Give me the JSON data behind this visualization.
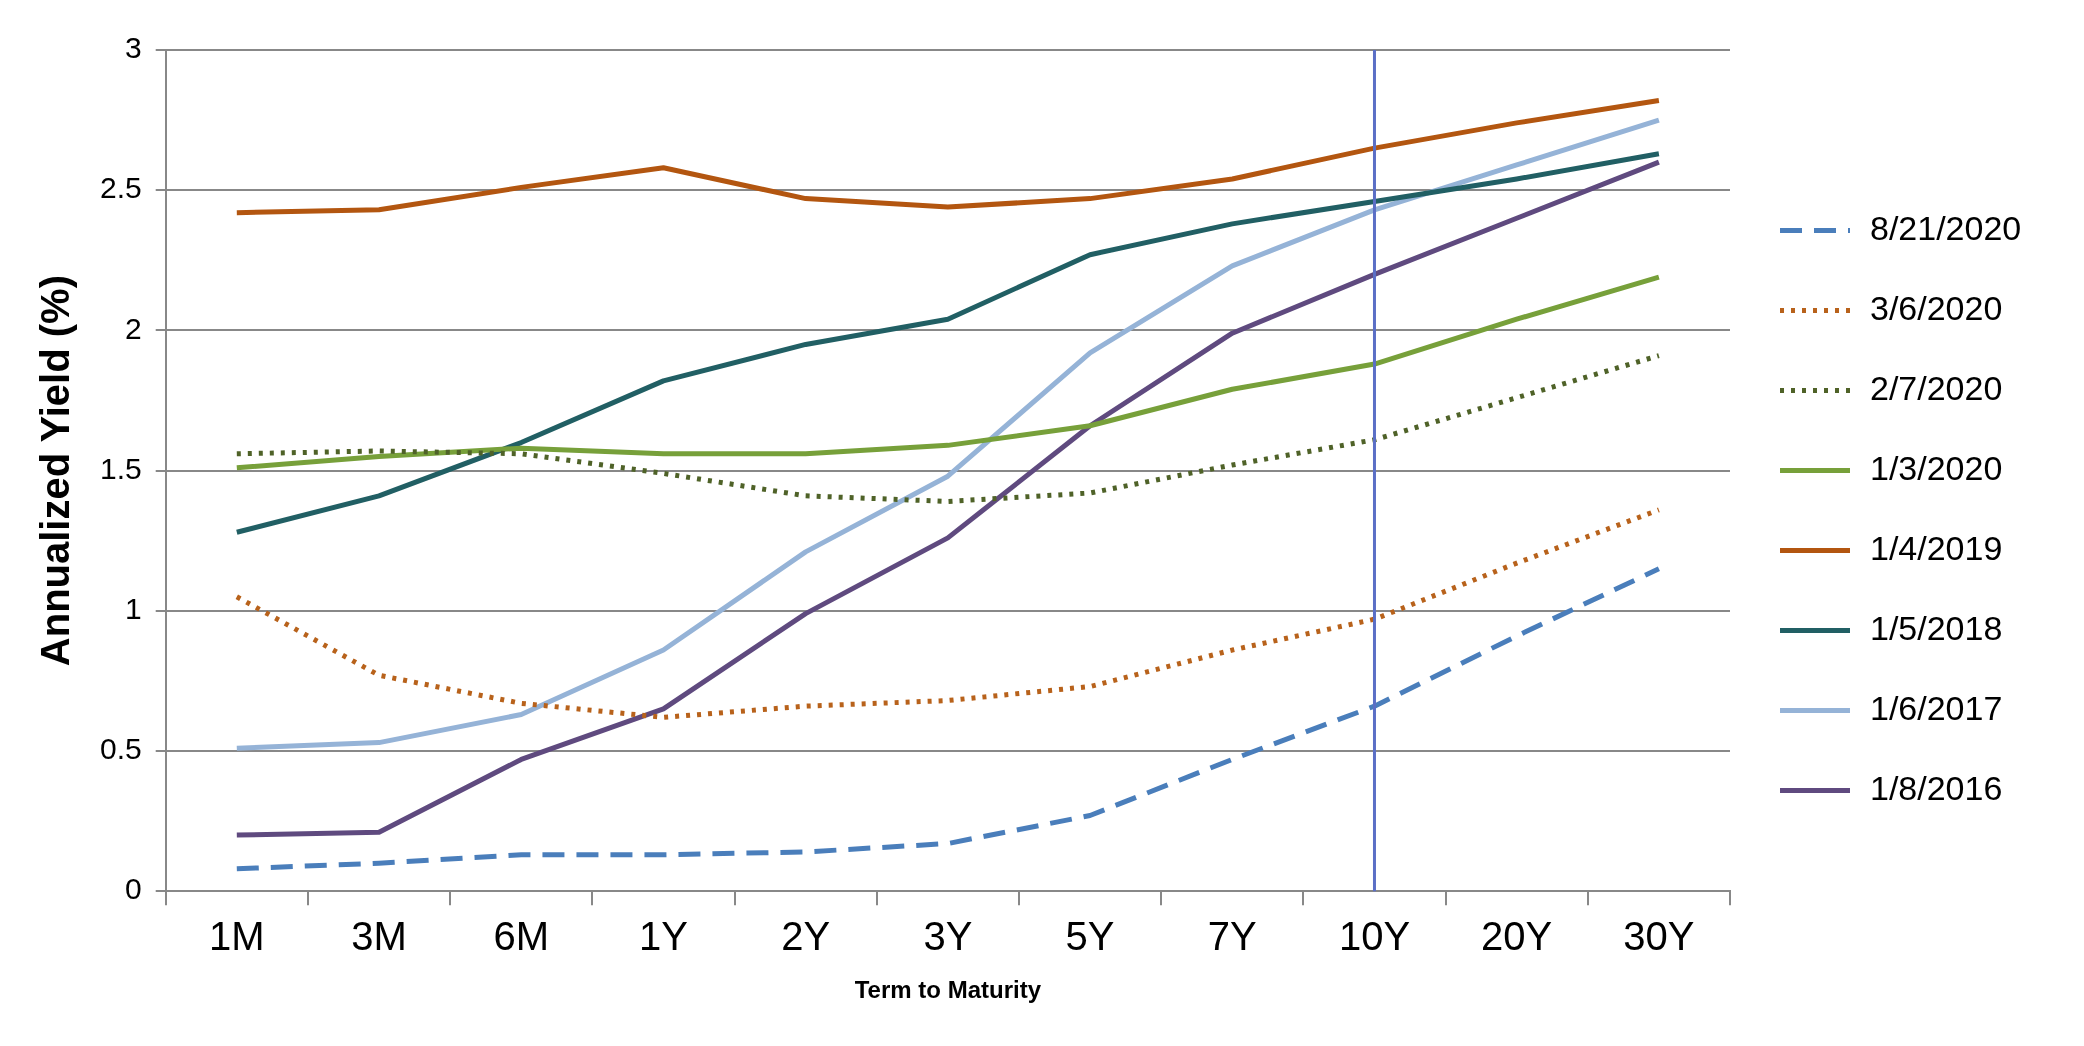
{
  "chart_data": {
    "type": "line",
    "xlabel": "Term to Maturity",
    "ylabel": "Annualized Yield (%)",
    "categories": [
      "1M",
      "3M",
      "6M",
      "1Y",
      "2Y",
      "3Y",
      "5Y",
      "7Y",
      "10Y",
      "20Y",
      "30Y"
    ],
    "ylim": [
      0,
      3
    ],
    "yticks": [
      0,
      0.5,
      1,
      1.5,
      2,
      2.5,
      3
    ],
    "grid": "y",
    "legend": "right",
    "marker": "none",
    "ref_lines": [
      {
        "axis": "x",
        "value": "10Y",
        "color": "#5b6fc6",
        "line_style": "solid"
      }
    ],
    "series": [
      {
        "name": "8/21/2020",
        "color": "#4a7ebb",
        "line_style": "dashed",
        "values": [
          0.08,
          0.1,
          0.13,
          0.13,
          0.14,
          0.17,
          0.27,
          0.47,
          0.66,
          0.91,
          1.15
        ]
      },
      {
        "name": "3/6/2020",
        "color": "#b8621b",
        "line_style": "dotted",
        "values": [
          1.05,
          0.77,
          0.67,
          0.62,
          0.66,
          0.68,
          0.73,
          0.86,
          0.97,
          1.17,
          1.36
        ]
      },
      {
        "name": "2/7/2020",
        "color": "#4f6228",
        "line_style": "dotted",
        "values": [
          1.56,
          1.57,
          1.56,
          1.49,
          1.41,
          1.39,
          1.42,
          1.52,
          1.61,
          1.76,
          1.91
        ]
      },
      {
        "name": "1/3/2020",
        "color": "#77a03a",
        "line_style": "solid",
        "values": [
          1.51,
          1.55,
          1.58,
          1.56,
          1.56,
          1.59,
          1.66,
          1.79,
          1.88,
          2.04,
          2.19
        ]
      },
      {
        "name": "1/4/2019",
        "color": "#b35610",
        "line_style": "solid",
        "values": [
          2.42,
          2.43,
          2.51,
          2.58,
          2.47,
          2.44,
          2.47,
          2.54,
          2.65,
          2.74,
          2.82
        ]
      },
      {
        "name": "1/5/2018",
        "color": "#215f64",
        "line_style": "solid",
        "values": [
          1.28,
          1.41,
          1.6,
          1.82,
          1.95,
          2.04,
          2.27,
          2.38,
          2.46,
          2.54,
          2.63
        ]
      },
      {
        "name": "1/6/2017",
        "color": "#95b3d7",
        "line_style": "solid",
        "values": [
          0.51,
          0.53,
          0.63,
          0.86,
          1.21,
          1.48,
          1.92,
          2.23,
          2.43,
          2.59,
          2.75
        ]
      },
      {
        "name": "1/8/2016",
        "color": "#5f4a7f",
        "line_style": "solid",
        "values": [
          0.2,
          0.21,
          0.47,
          0.65,
          0.99,
          1.26,
          1.66,
          1.99,
          2.2,
          2.4,
          2.6
        ]
      }
    ]
  }
}
